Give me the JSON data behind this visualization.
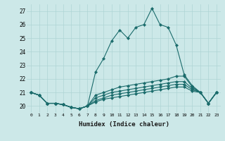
{
  "xlabel": "Humidex (Indice chaleur)",
  "ylabel": "",
  "background_color": "#cce8e8",
  "line_color": "#1a6b6b",
  "grid_color": "#aed4d4",
  "xmin": -0.5,
  "xmax": 23.5,
  "ymin": 19.5,
  "ymax": 27.5,
  "yticks": [
    20,
    21,
    22,
    23,
    24,
    25,
    26,
    27
  ],
  "xticks": [
    0,
    1,
    2,
    3,
    4,
    5,
    6,
    7,
    8,
    9,
    10,
    11,
    12,
    13,
    14,
    15,
    16,
    17,
    18,
    19,
    20,
    21,
    22,
    23
  ],
  "series": [
    [
      21.0,
      20.8,
      20.2,
      20.2,
      20.1,
      19.9,
      19.8,
      20.0,
      22.5,
      23.5,
      24.8,
      25.6,
      25.0,
      25.8,
      26.0,
      27.2,
      26.0,
      25.8,
      24.5,
      22.3,
      21.5,
      21.0,
      20.2,
      21.0
    ],
    [
      21.0,
      20.8,
      20.2,
      20.2,
      20.1,
      19.9,
      19.8,
      20.0,
      20.8,
      21.0,
      21.2,
      21.4,
      21.5,
      21.6,
      21.7,
      21.8,
      21.9,
      22.0,
      22.2,
      22.2,
      21.4,
      21.0,
      20.2,
      21.0
    ],
    [
      21.0,
      20.8,
      20.2,
      20.2,
      20.1,
      19.9,
      19.8,
      20.0,
      20.6,
      20.8,
      21.0,
      21.1,
      21.2,
      21.3,
      21.4,
      21.5,
      21.6,
      21.7,
      21.8,
      21.8,
      21.3,
      21.0,
      20.2,
      21.0
    ],
    [
      21.0,
      20.8,
      20.2,
      20.2,
      20.1,
      19.9,
      19.8,
      20.0,
      20.4,
      20.6,
      20.8,
      20.9,
      21.0,
      21.1,
      21.2,
      21.3,
      21.4,
      21.5,
      21.6,
      21.6,
      21.2,
      21.0,
      20.2,
      21.0
    ],
    [
      21.0,
      20.8,
      20.2,
      20.2,
      20.1,
      19.9,
      19.8,
      20.0,
      20.3,
      20.5,
      20.6,
      20.7,
      20.8,
      20.9,
      21.0,
      21.1,
      21.2,
      21.3,
      21.4,
      21.4,
      21.1,
      21.0,
      20.2,
      21.0
    ]
  ]
}
